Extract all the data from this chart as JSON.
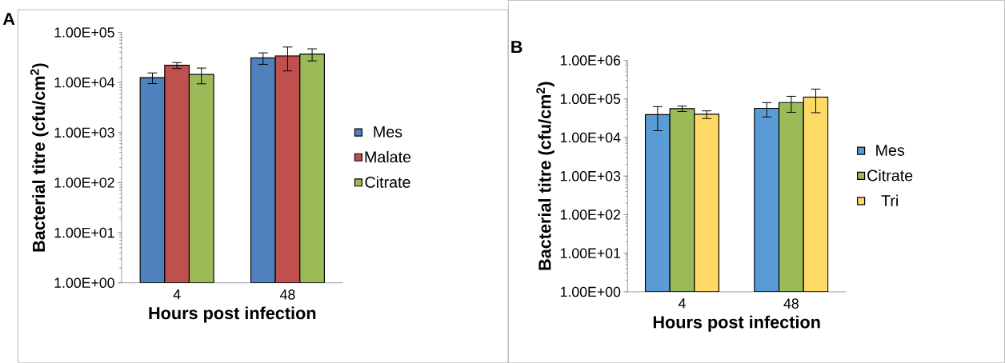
{
  "chart_data": [
    {
      "type": "bar",
      "title": "A",
      "xlabel": "Hours post infection",
      "ylabel": "Bacterial titre (cfu/cm$^{2}$)",
      "categories": [
        "4",
        "48"
      ],
      "log": "y",
      "ylim": [
        1,
        100000
      ],
      "yticks": [
        {
          "value": 1,
          "label": "1.00E+00"
        },
        {
          "value": 10,
          "label": "1.00E+01"
        },
        {
          "value": 100,
          "label": "1.00E+02"
        },
        {
          "value": 1000,
          "label": "1.00E+03"
        },
        {
          "value": 10000,
          "label": "1.00E+04"
        },
        {
          "value": 100000,
          "label": "1.00E+05"
        }
      ],
      "legend": "right",
      "grid": false,
      "series": [
        {
          "name": "Mes",
          "color": "#4f81bd",
          "values": [
            12500,
            31000
          ],
          "errors": [
            3000,
            8000
          ]
        },
        {
          "name": "Malate",
          "color": "#c0504d",
          "values": [
            22000,
            34000
          ],
          "errors": [
            3000,
            17000
          ]
        },
        {
          "name": "Citrate",
          "color": "#9bbb59",
          "values": [
            14400,
            37000
          ],
          "errors": [
            5000,
            10000
          ]
        }
      ]
    },
    {
      "type": "bar",
      "title": "B",
      "xlabel": "Hours post infection",
      "ylabel": "Bacterial titre (cfu/cm$^{2}$)",
      "categories": [
        "4",
        "48"
      ],
      "log": "y",
      "ylim": [
        1,
        1000000
      ],
      "yticks": [
        {
          "value": 1,
          "label": "1.00E+00"
        },
        {
          "value": 10,
          "label": "1.00E+01"
        },
        {
          "value": 100,
          "label": "1.00E+02"
        },
        {
          "value": 1000,
          "label": "1.00E+03"
        },
        {
          "value": 10000,
          "label": "1.00E+04"
        },
        {
          "value": 100000,
          "label": "1.00E+05"
        },
        {
          "value": 1000000,
          "label": "1.00E+06"
        }
      ],
      "legend": "right",
      "grid": false,
      "series": [
        {
          "name": "Mes",
          "color": "#5b9bd5",
          "values": [
            39000,
            57000
          ],
          "errors": [
            24000,
            23000
          ]
        },
        {
          "name": "Citrate",
          "color": "#9bbb59",
          "values": [
            56000,
            81000
          ],
          "errors": [
            9000,
            36000
          ]
        },
        {
          "name": "Tri",
          "color": "#ffd966",
          "values": [
            40000,
            112000
          ],
          "errors": [
            9000,
            68000
          ]
        }
      ]
    }
  ]
}
